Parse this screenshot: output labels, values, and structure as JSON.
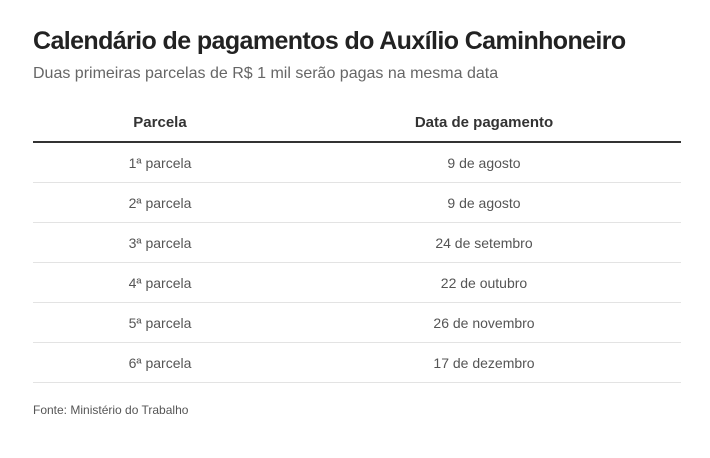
{
  "title": "Calendário de pagamentos do Auxílio Caminhoneiro",
  "subtitle": "Duas primeiras parcelas de R$ 1 mil serão pagas na mesma data",
  "table": {
    "headers": [
      "Parcela",
      "Data de pagamento"
    ],
    "rows": [
      [
        "1ª parcela",
        "9 de agosto"
      ],
      [
        "2ª parcela",
        "9 de agosto"
      ],
      [
        "3ª parcela",
        "24 de setembro"
      ],
      [
        "4ª parcela",
        "22 de outubro"
      ],
      [
        "5ª parcela",
        "26 de novembro"
      ],
      [
        "6ª parcela",
        "17 de dezembro"
      ]
    ]
  },
  "source": "Fonte: Ministério do Trabalho"
}
